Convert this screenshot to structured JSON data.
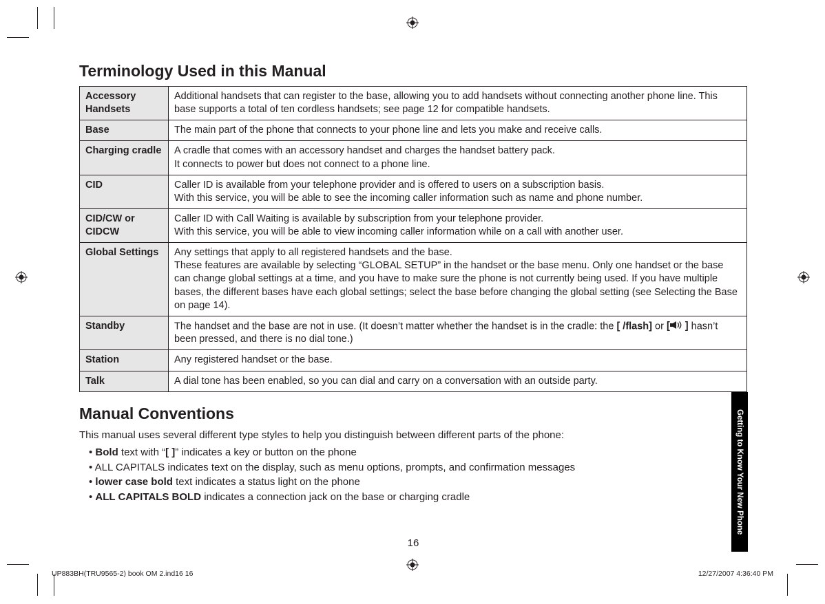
{
  "colors": {
    "text": "#231f20",
    "row_bg": "#e6e6e6",
    "tab_bg": "#000000",
    "tab_fg": "#ffffff"
  },
  "heading1": "Terminology Used in this Manual",
  "terms": [
    {
      "k": "Accessory Handsets",
      "v": "Additional handsets that can register to the base, allowing you to add handsets without connecting another phone line. This base supports a total of ten cordless handsets; see page 12 for compatible handsets."
    },
    {
      "k": "Base",
      "v": "The main part of the phone that connects to your phone line and lets you make and receive calls."
    },
    {
      "k": "Charging cradle",
      "v": "A cradle that comes with an accessory handset and charges the handset battery pack.\nIt connects to power but does not connect to a phone line."
    },
    {
      "k": "CID",
      "v": "Caller ID is available from your telephone provider and is offered to users on a subscription basis.\nWith this service, you will be able to see the incoming caller information such as name and phone number."
    },
    {
      "k": "CID/CW or CIDCW",
      "v": "Caller ID with Call Waiting is available by subscription from your telephone provider.\nWith this service, you will be able to view incoming caller information while on a call with another user."
    },
    {
      "k": "Global Settings",
      "v": "Any settings that apply to all registered handsets and the base.\nThese features are available by selecting “GLOBAL SETUP” in the handset or the base menu. Only one handset or the base can change global settings at a time, and you have to make sure the phone is not currently being used. If you have multiple bases, the different bases have each global settings; select the base before changing the global setting (see Selecting the Base on page 14)."
    },
    {
      "k": "Standby",
      "v_pre": "The handset and the base are not in use. (It doesn’t matter whether the handset is in the cradle: the ",
      "v_key1": "[ /flash]",
      "v_mid": " or ",
      "v_key2_open": "[",
      "v_key2_close": "]",
      "v_post": " hasn’t been pressed, and there is no dial tone.)"
    },
    {
      "k": "Station",
      "v": "Any registered handset or the base."
    },
    {
      "k": "Talk",
      "v": "A dial tone has been enabled, so you can dial and carry on a conversation with an outside party."
    }
  ],
  "heading2": "Manual Conventions",
  "conv_intro": "This manual uses several different type styles to help you distinguish between different parts of the phone:",
  "conv_items": [
    {
      "b": "Bold",
      "rest": " text with “",
      "b2": "[ ]",
      "rest2": "” indicates a key or button on the phone"
    },
    {
      "plain": "ALL CAPITALS indicates text on the display, such as menu options, prompts, and confirmation messages"
    },
    {
      "b": "lower case bold",
      "rest": " text indicates a status light on the phone"
    },
    {
      "b": "ALL CAPITALS BOLD",
      "rest": " indicates a connection jack on the base or charging cradle"
    }
  ],
  "page_number": "16",
  "side_tab": "Getting to Know Your New Phone",
  "footer_left": "UP883BH(TRU9565-2) book OM 2.ind16   16",
  "footer_right": "12/27/2007   4:36:40 PM"
}
